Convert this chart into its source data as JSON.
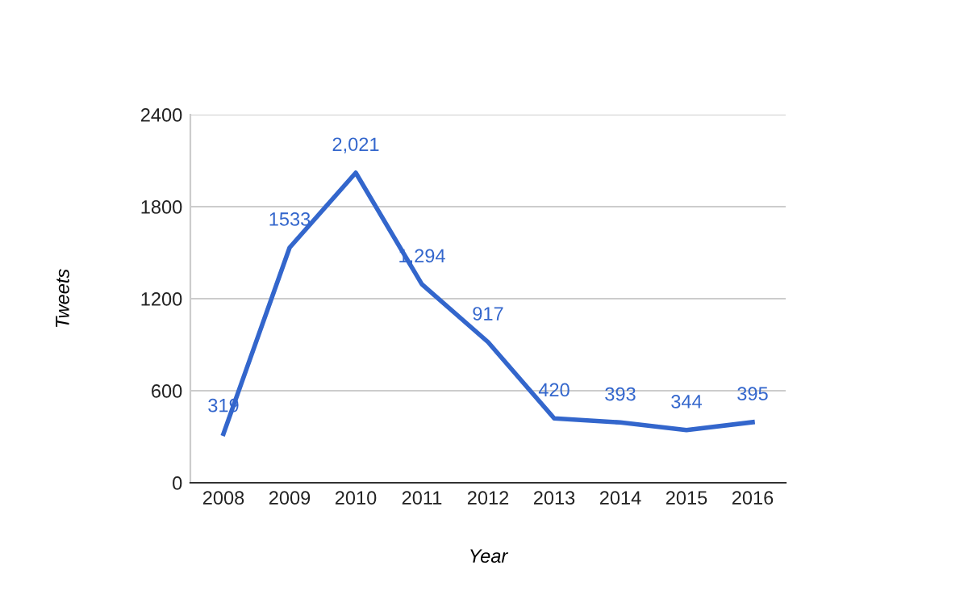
{
  "chart_data": {
    "type": "line",
    "xlabel": "Year",
    "ylabel": "Tweets",
    "categories": [
      "2008",
      "2009",
      "2010",
      "2011",
      "2012",
      "2013",
      "2014",
      "2015",
      "2016"
    ],
    "series": [
      {
        "color": "#3366cc",
        "values": [
          319,
          1533,
          2021,
          1294,
          917,
          420,
          393,
          344,
          395
        ],
        "value_labels": [
          "319",
          "1533",
          "2,021",
          "1,294",
          "917",
          "420",
          "393",
          "344",
          "395"
        ]
      }
    ],
    "ylim": [
      0,
      2400
    ],
    "yticks": [
      0,
      600,
      1200,
      1800,
      2400
    ],
    "grid": "y",
    "legend": false,
    "marker": "none",
    "line_style": "solid"
  }
}
